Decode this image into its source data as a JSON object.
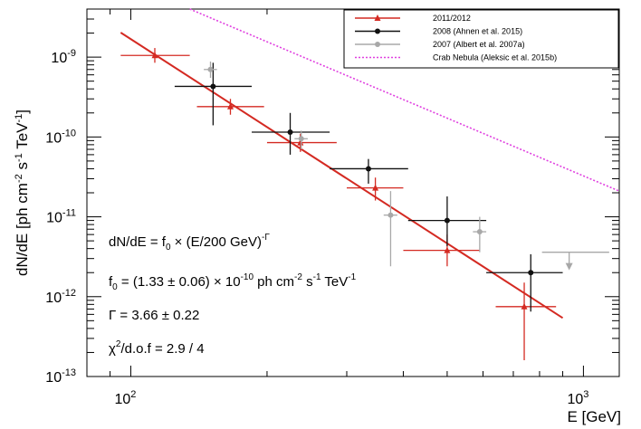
{
  "chart_data": {
    "type": "scatter",
    "x_scale": "log",
    "y_scale": "log",
    "xlim": [
      80,
      1200
    ],
    "ylim": [
      1e-13,
      4e-09
    ],
    "xlabel": "E  [GeV]",
    "ylabel": "dN/dE [ph cm-2 s-1 TeV-1]",
    "x_ticks": [
      {
        "value": 100,
        "base": "10",
        "exp": "2"
      },
      {
        "value": 1000,
        "base": "10",
        "exp": "3"
      }
    ],
    "y_ticks": [
      {
        "value": 1e-09,
        "base": "10",
        "exp": "-9"
      },
      {
        "value": 1e-10,
        "base": "10",
        "exp": "-10"
      },
      {
        "value": 1e-11,
        "base": "10",
        "exp": "-11"
      },
      {
        "value": 1e-12,
        "base": "10",
        "exp": "-12"
      },
      {
        "value": 1e-13,
        "base": "10",
        "exp": "-13"
      }
    ],
    "legend": {
      "placement": "top-right",
      "entries": [
        {
          "label": "2011/2012",
          "color": "#d42a22",
          "marker": "triangle",
          "line": "solid"
        },
        {
          "label": "2008 (Ahnen et al. 2015)",
          "color": "#111111",
          "marker": "circle",
          "line": "solid"
        },
        {
          "label": "2007 (Albert et al. 2007a)",
          "color": "#a8a8a8",
          "marker": "circle",
          "line": "solid"
        },
        {
          "label": "Crab Nebula (Aleksic et al. 2015b)",
          "color": "#e040e0",
          "marker": "none",
          "line": "dotted"
        }
      ]
    },
    "series": [
      {
        "name": "2011/2012",
        "color": "#d42a22",
        "marker": "triangle",
        "points": [
          {
            "x": 113,
            "y": 1.05e-09,
            "xlo": 95,
            "xhi": 135,
            "ylo": 8.5e-10,
            "yhi": 1.3e-09
          },
          {
            "x": 166,
            "y": 2.4e-10,
            "xlo": 140,
            "xhi": 197,
            "ylo": 1.9e-10,
            "yhi": 3e-10
          },
          {
            "x": 237,
            "y": 8.5e-11,
            "xlo": 200,
            "xhi": 285,
            "ylo": 6.5e-11,
            "yhi": 1.1e-10
          },
          {
            "x": 347,
            "y": 2.3e-11,
            "xlo": 300,
            "xhi": 400,
            "ylo": 1.6e-11,
            "yhi": 3.1e-11
          },
          {
            "x": 500,
            "y": 3.8e-12,
            "xlo": 400,
            "xhi": 590,
            "ylo": 2.4e-12,
            "yhi": 6e-12
          },
          {
            "x": 740,
            "y": 7.5e-13,
            "xlo": 640,
            "xhi": 870,
            "ylo": 1.6e-13,
            "yhi": 1.5e-12
          }
        ]
      },
      {
        "name": "2008 (Ahnen et al. 2015)",
        "color": "#111111",
        "marker": "circle",
        "points": [
          {
            "x": 152,
            "y": 4.3e-10,
            "xlo": 125,
            "xhi": 185,
            "ylo": 1.4e-10,
            "yhi": 8.5e-10
          },
          {
            "x": 225,
            "y": 1.15e-10,
            "xlo": 185,
            "xhi": 275,
            "ylo": 6e-11,
            "yhi": 2e-10
          },
          {
            "x": 335,
            "y": 4e-11,
            "xlo": 275,
            "xhi": 410,
            "ylo": 2.6e-11,
            "yhi": 5.3e-11
          },
          {
            "x": 500,
            "y": 9e-12,
            "xlo": 410,
            "xhi": 610,
            "ylo": 4.3e-12,
            "yhi": 1.8e-11
          },
          {
            "x": 765,
            "y": 2e-12,
            "xlo": 610,
            "xhi": 900,
            "ylo": 6.5e-13,
            "yhi": 3.4e-12
          }
        ]
      },
      {
        "name": "2007 (Albert et al. 2007a)",
        "color": "#a8a8a8",
        "marker": "circle",
        "points": [
          {
            "x": 150,
            "y": 7e-10,
            "xlo": 145,
            "xhi": 155,
            "ylo": 5.5e-10,
            "yhi": 8.8e-10
          },
          {
            "x": 238,
            "y": 9.5e-11,
            "xlo": 230,
            "xhi": 246,
            "ylo": 7e-11,
            "yhi": 1.2e-10
          },
          {
            "x": 375,
            "y": 1.05e-11,
            "xlo": 362,
            "xhi": 388,
            "ylo": 2.4e-12,
            "yhi": 2.1e-11
          },
          {
            "x": 590,
            "y": 6.5e-12,
            "xlo": 570,
            "xhi": 610,
            "ylo": 3.6e-12,
            "yhi": 1e-11
          }
        ]
      }
    ],
    "upper_limit": {
      "x": 930,
      "y": 3.6e-12,
      "xlo": 810,
      "xhi": 1140,
      "arrow_to": 2.2e-12,
      "color": "#a8a8a8"
    },
    "fit_line": {
      "color": "#d42a22",
      "x_start": 95,
      "x_end": 900,
      "f0": 1.33e-10,
      "e0": 200,
      "index": 3.66
    },
    "crab_line": {
      "color": "#e040e0",
      "style": "dotted",
      "points": [
        [
          135,
          4e-09
        ],
        [
          1200,
          2.1e-11
        ]
      ]
    },
    "annotations": {
      "formula": {
        "pre": "dN/dE = f",
        "sub": "0",
        "mid": " × (E/200 GeV)",
        "sup": "-Γ"
      },
      "f0": {
        "pre": "f",
        "sub": "0",
        "mid": " = (1.33 ± 0.06) × 10",
        "sup1": "-10",
        "units_a": " ph cm",
        "sup2": "-2",
        "units_b": " s",
        "sup3": "-1",
        "units_c": " TeV",
        "sup4": "-1"
      },
      "gamma": "Γ = 3.66 ± 0.22",
      "chi2": {
        "pre": "χ",
        "sup": "2",
        "post": "/d.o.f = 2.9 / 4"
      }
    }
  }
}
